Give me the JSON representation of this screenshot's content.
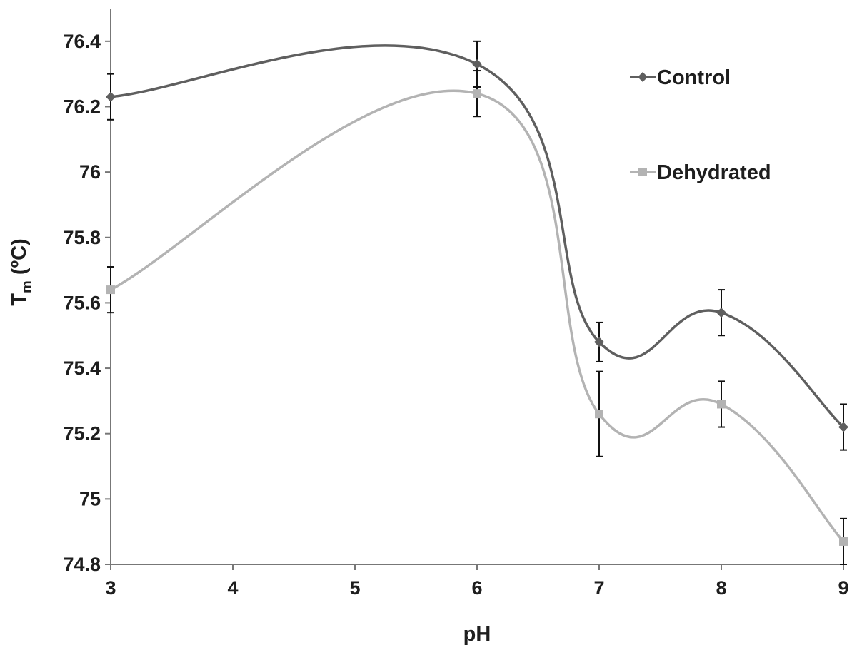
{
  "chart_data": {
    "type": "line",
    "title": "",
    "xlabel": "pH",
    "ylabel_main": "T",
    "ylabel_sub": "m",
    "ylabel_unit": " (ºC)",
    "x": [
      3,
      4,
      5,
      6,
      7,
      8,
      9
    ],
    "xlim": [
      3,
      9
    ],
    "ylim": [
      74.8,
      76.5
    ],
    "yticks": [
      "74.8",
      "75",
      "75.2",
      "75.4",
      "75.6",
      "75.8",
      "76",
      "76.2",
      "76.4"
    ],
    "xticks": [
      "3",
      "4",
      "5",
      "6",
      "7",
      "8",
      "9"
    ],
    "grid": false,
    "legend_position": "top-right",
    "smooth": true,
    "series": [
      {
        "name": "Control",
        "color": "#5f5f5f",
        "marker": "diamond",
        "points": [
          {
            "x": 3,
            "y": 76.23,
            "err": 0.07
          },
          {
            "x": 6,
            "y": 76.33,
            "err": 0.07
          },
          {
            "x": 7,
            "y": 75.48,
            "err": 0.06
          },
          {
            "x": 8,
            "y": 75.57,
            "err": 0.07
          },
          {
            "x": 9,
            "y": 75.22,
            "err": 0.07
          }
        ]
      },
      {
        "name": "Dehydrated",
        "color": "#b3b3b3",
        "marker": "square",
        "points": [
          {
            "x": 3,
            "y": 75.64,
            "err": 0.07
          },
          {
            "x": 6,
            "y": 76.24,
            "err": 0.07
          },
          {
            "x": 7,
            "y": 75.26,
            "err": 0.13
          },
          {
            "x": 8,
            "y": 75.29,
            "err": 0.07
          },
          {
            "x": 9,
            "y": 74.87,
            "err": 0.07
          }
        ]
      }
    ]
  }
}
